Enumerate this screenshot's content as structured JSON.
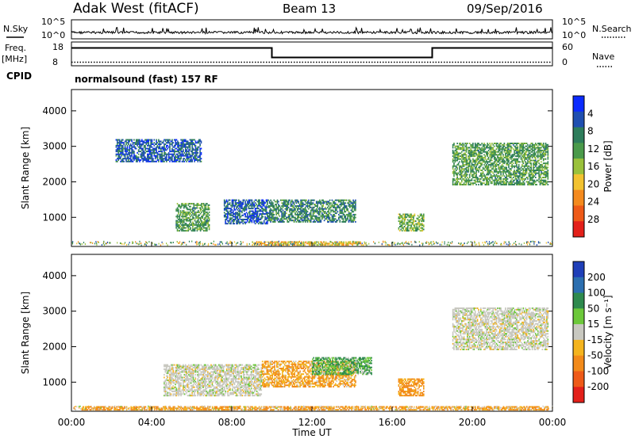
{
  "header": {
    "station": "Adak West (fitACF)",
    "beam": "Beam 13",
    "date": "09/Sep/2016"
  },
  "status_panel": {
    "nsky_label": "N.Sky",
    "nsky_tick_top": "10^5",
    "nsky_tick_bottom": "10^0",
    "nsearch_label": "N.Search",
    "nsearch_tick_top": "10^5",
    "nsearch_tick_bottom": "10^0",
    "freq_label": "Freq.",
    "freq_unit": "[MHz]",
    "freq_tick_top": "18",
    "freq_tick_bottom": "8",
    "nave_label": "Nave",
    "nave_tick_top": "60",
    "nave_tick_bottom": "0",
    "cpid_label": "CPID",
    "cpid_value": "normalsound (fast) 157 RF",
    "freq_segments": [
      {
        "t0": 0,
        "t1": 10,
        "mhz": 15.5
      },
      {
        "t0": 10,
        "t1": 18,
        "mhz": 11.5
      },
      {
        "t0": 18,
        "t1": 24,
        "mhz": 15.5
      }
    ],
    "nave_level": 9
  },
  "x_axis": {
    "label": "Time UT",
    "ticks": [
      "00:00",
      "04:00",
      "08:00",
      "12:00",
      "16:00",
      "20:00",
      "00:00"
    ]
  },
  "power_colorbar": {
    "title": "Power [dB]",
    "ticks": [
      "4",
      "8",
      "12",
      "16",
      "20",
      "24",
      "28"
    ],
    "colors": [
      "#0b2bff",
      "#1f4fb0",
      "#2e7d5b",
      "#4a9a4a",
      "#9ac13b",
      "#f2c230",
      "#f48a1e",
      "#ee5a18",
      "#e3201a"
    ]
  },
  "velocity_colorbar": {
    "title": "Velocity [m s⁻¹]",
    "ticks": [
      "200",
      "100",
      "50",
      "15",
      "-15",
      "-50",
      "-100",
      "-200"
    ],
    "colors": [
      "#1f3fb8",
      "#2c6fb0",
      "#2e8a4e",
      "#6cc83a",
      "#c8c8c0",
      "#f4b41e",
      "#f28a1a",
      "#ee5a18",
      "#e3201a"
    ]
  },
  "chart_data": [
    {
      "type": "heatmap",
      "name": "power",
      "xlabel": "Time UT",
      "ylabel": "Slant Range [km]",
      "xlim": [
        0,
        24
      ],
      "ylim": [
        180,
        4600
      ],
      "yticks": [
        "1000",
        "2000",
        "3000",
        "4000"
      ],
      "colorbar_label": "Power [dB]",
      "regions": [
        {
          "t0": 5.2,
          "t1": 6.9,
          "r0": 600,
          "r1": 1400,
          "value": 12
        },
        {
          "t0": 7.6,
          "t1": 9.8,
          "r0": 800,
          "r1": 1500,
          "value": 6
        },
        {
          "t0": 9.8,
          "t1": 14.2,
          "r0": 850,
          "r1": 1500,
          "value": 10
        },
        {
          "t0": 16.3,
          "t1": 17.6,
          "r0": 600,
          "r1": 1100,
          "value": 14
        },
        {
          "t0": 19.0,
          "t1": 23.8,
          "r0": 1900,
          "r1": 3100,
          "value": 12
        },
        {
          "t0": 2.2,
          "t1": 6.5,
          "r0": 2550,
          "r1": 3200,
          "value": 6
        },
        {
          "t0": 9.0,
          "t1": 14.5,
          "r0": 200,
          "r1": 320,
          "value": 20
        }
      ]
    },
    {
      "type": "heatmap",
      "name": "velocity",
      "xlabel": "Time UT",
      "ylabel": "Slant Range [km]",
      "xlim": [
        0,
        24
      ],
      "ylim": [
        180,
        4600
      ],
      "yticks": [
        "1000",
        "2000",
        "3000",
        "4000"
      ],
      "colorbar_label": "Velocity [m s⁻¹]",
      "regions": [
        {
          "t0": 4.6,
          "t1": 9.5,
          "r0": 600,
          "r1": 1500,
          "value": 0
        },
        {
          "t0": 9.5,
          "t1": 14.2,
          "r0": 850,
          "r1": 1600,
          "value": -30
        },
        {
          "t0": 12.0,
          "t1": 15.0,
          "r0": 1200,
          "r1": 1700,
          "value": 30
        },
        {
          "t0": 16.3,
          "t1": 17.6,
          "r0": 600,
          "r1": 1100,
          "value": -40
        },
        {
          "t0": 19.0,
          "t1": 23.8,
          "r0": 1900,
          "r1": 3100,
          "value": 0
        },
        {
          "t0": 0.5,
          "t1": 23.8,
          "r0": 200,
          "r1": 320,
          "value": -40
        }
      ]
    }
  ]
}
